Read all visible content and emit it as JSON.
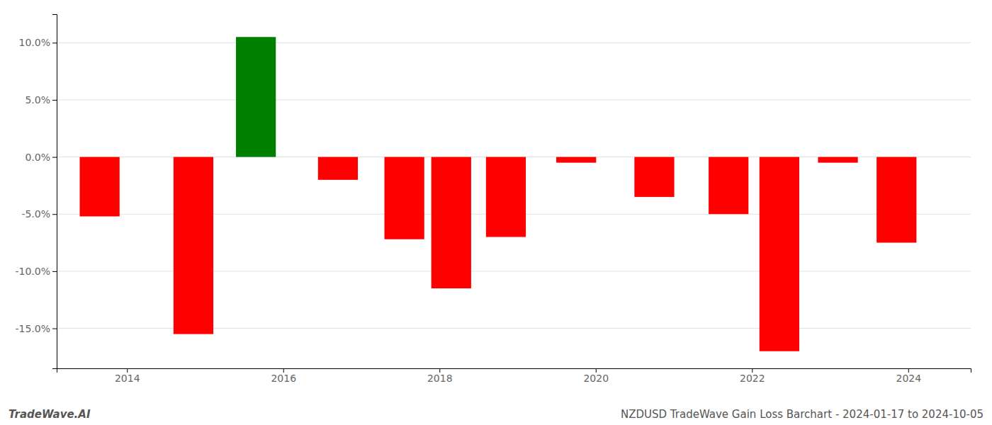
{
  "chart_data": {
    "type": "bar",
    "x": [
      2013.65,
      2014.85,
      2015.65,
      2016.7,
      2017.55,
      2018.15,
      2018.85,
      2019.75,
      2020.75,
      2021.7,
      2022.35,
      2023.1,
      2023.85
    ],
    "values": [
      -5.2,
      -15.5,
      10.5,
      -2.0,
      -7.2,
      -11.5,
      -7.0,
      -0.5,
      -3.5,
      -5.0,
      -17.0,
      -0.5,
      -7.5
    ],
    "colors": [
      "#ff0000",
      "#ff0000",
      "#008000",
      "#ff0000",
      "#ff0000",
      "#ff0000",
      "#ff0000",
      "#ff0000",
      "#ff0000",
      "#ff0000",
      "#ff0000",
      "#ff0000",
      "#ff0000"
    ],
    "xlim": [
      2013.1,
      2024.8
    ],
    "ylim": [
      -18.5,
      12.5
    ],
    "xticks": [
      2014,
      2016,
      2018,
      2020,
      2022,
      2024
    ],
    "yticks": [
      {
        "value": -15.0,
        "label": "-15.0%"
      },
      {
        "value": -10.0,
        "label": "-10.0%"
      },
      {
        "value": -5.0,
        "label": "-5.0%"
      },
      {
        "value": 0.0,
        "label": "0.0%"
      },
      {
        "value": 5.0,
        "label": "5.0%"
      },
      {
        "value": 10.0,
        "label": "10.0%"
      }
    ],
    "grid": true,
    "annotations": [
      "TradeWave.AI",
      "NZDUSD TradeWave Gain Loss Barchart - 2024-01-17 to 2024-10-05"
    ]
  }
}
